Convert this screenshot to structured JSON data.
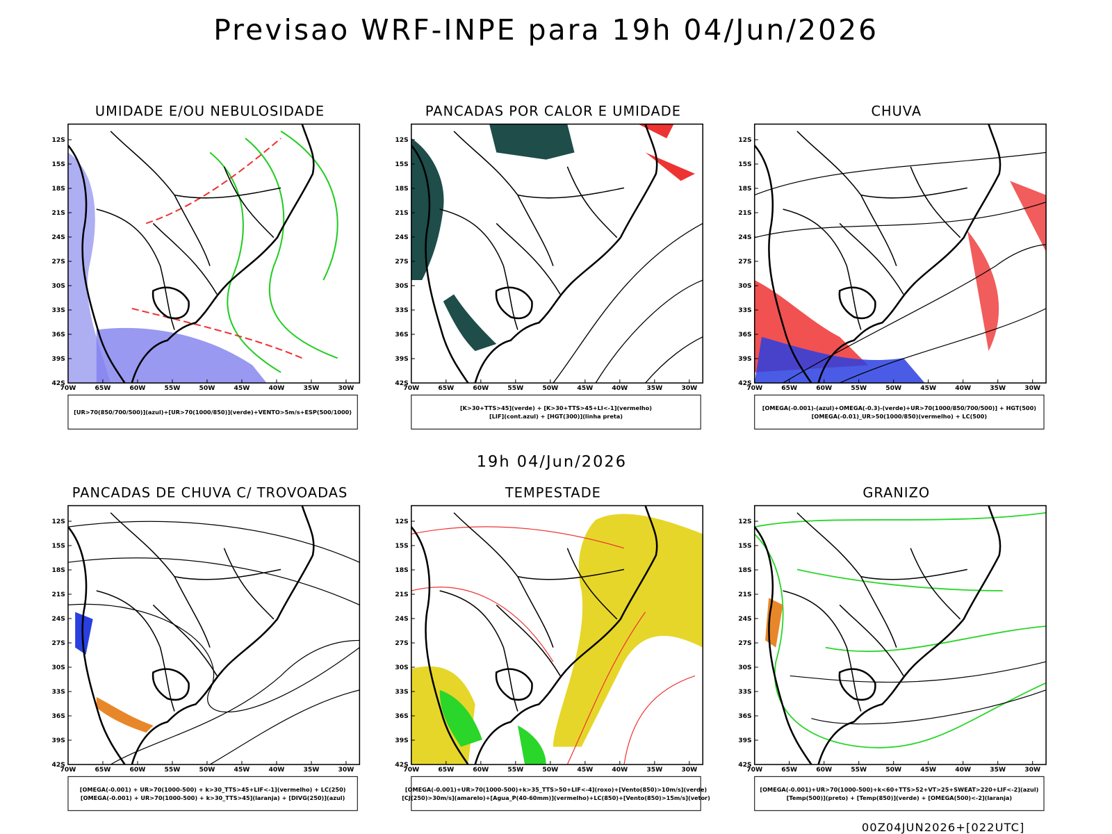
{
  "title": "Previsao WRF-INPE  para 19h 04/Jun/2026",
  "subtitle": "19h 04/Jun/2026",
  "footer": "00Z04JUN2026+[022UTC]",
  "lat_labels": [
    "12S",
    "15S",
    "18S",
    "21S",
    "24S",
    "27S",
    "30S",
    "33S",
    "36S",
    "39S",
    "42S"
  ],
  "lon_labels": [
    "70W",
    "65W",
    "60W",
    "55W",
    "50W",
    "45W",
    "40W",
    "35W",
    "30W"
  ],
  "panels": [
    {
      "title": "UMIDADE E/OU NEBULOSIDADE",
      "legend": [
        "[UR>70(850/700/500)](azul)+[UR>70(1000/850)](verde)+VENTO>5m/s+ESP(500/1000)"
      ]
    },
    {
      "title": "PANCADAS POR CALOR E UMIDADE",
      "legend": [
        "[K>30+TTS>45](verde) + [K>30+TTS>45+LI<-1](vermelho)",
        "[LIF](cont.azul) + [HGT(300)](linha preta)"
      ]
    },
    {
      "title": "CHUVA",
      "legend": [
        "[OMEGA(-0.001)-(azul)+OMEGA(-0.3)-(verde)+UR>70(1000/850/700/500)] + HGT(500)",
        "[OMEGA(-0.01)_UR>50(1000/850)(vermelho) + LC(500)"
      ]
    },
    {
      "title": "PANCADAS DE CHUVA C/ TROVOADAS",
      "legend": [
        "[OMEGA(-0.001) + UR>70(1000-500) + k>30_TTS>45+LIF<-1](vermelho) + LC(250)",
        "[OMEGA(-0.001) + UR>70(1000-500) + k>30_TTS>45](laranja) + [DIVG(250)](azul)"
      ]
    },
    {
      "title": "TEMPESTADE",
      "legend": [
        "[OMEGA(-0.001)+UR>70(1000-500)+k>35_TTS>50+LIF<-4](roxo)+[Vento(850)>10m/s](verde)",
        "[CJ(250)>30m/s](amarelo)+[Agua_P(40-60mm)](vermelho)+LC(850)+[Vento(850)>15m/s](vetor)"
      ]
    },
    {
      "title": "GRANIZO",
      "legend": [
        "[OMEGA(-0.001)+UR>70(1000-500)+k<60+TTS>52+VT>25+SWEAT>220+LIF<-2](azul)",
        "[Temp(500)](preto) + [Temp(850)](verde) + [OMEGA(500)<-2](laranja)"
      ]
    }
  ]
}
